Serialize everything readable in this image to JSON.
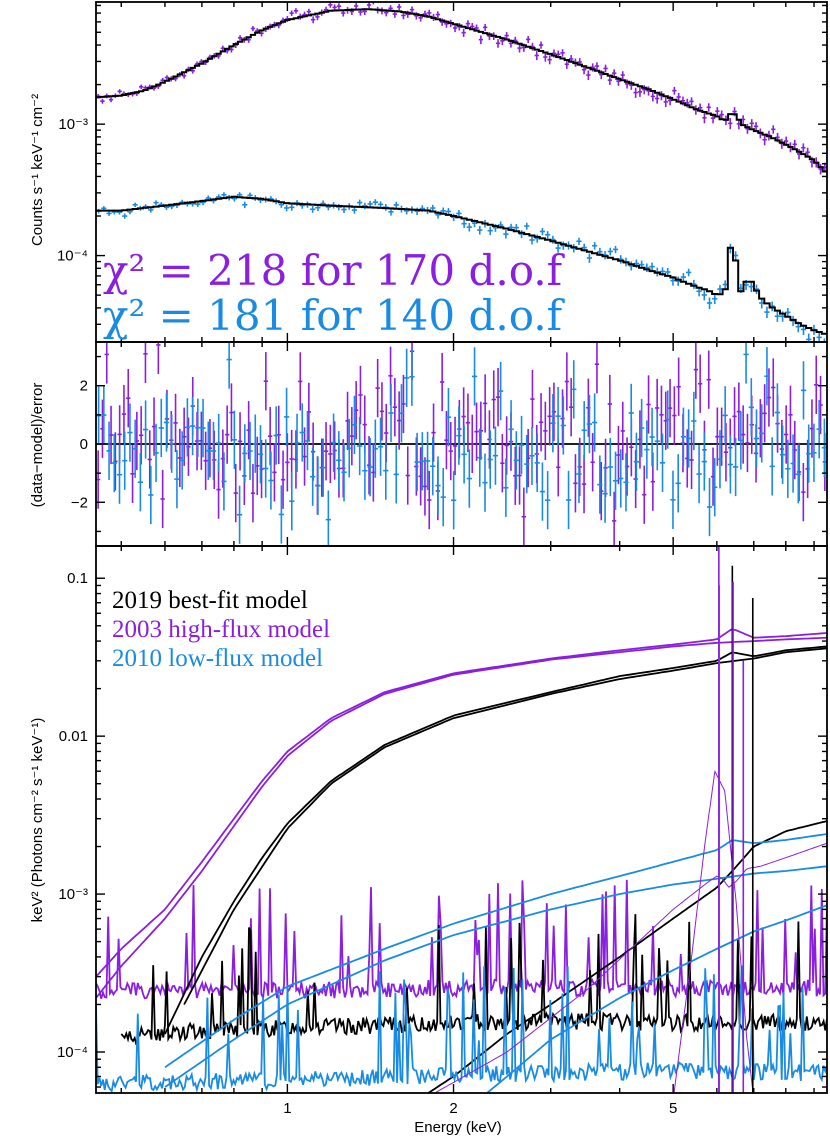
{
  "colors": {
    "obs2003": "#8a1fe0",
    "obs2010": "#1a8be4",
    "model2019": "#000000"
  },
  "chart_data": [
    {
      "panel": "counts-spectrum",
      "type": "line",
      "xscale": "log",
      "yscale": "log",
      "xlim": [
        0.45,
        9.5
      ],
      "ylim": [
        2.2e-05,
        0.0085
      ],
      "ylabel": "Counts s⁻¹ keV⁻¹ cm⁻²",
      "yticks": [
        {
          "value": 0.001,
          "label": "10⁻³"
        },
        {
          "value": 0.0001,
          "label": "10⁻⁴"
        }
      ],
      "annotations": [
        {
          "text": "χ² = 218 for 170 d.o.f",
          "series": "obs2003"
        },
        {
          "text": "χ² = 181 for 140 d.o.f",
          "series": "obs2010"
        }
      ],
      "series": [
        {
          "key": "obs2003",
          "x": [
            0.45,
            0.5,
            0.55,
            0.6,
            0.7,
            0.8,
            0.9,
            1.0,
            1.2,
            1.4,
            1.6,
            1.8,
            2.0,
            2.5,
            3.0,
            3.5,
            4.0,
            4.5,
            5.0,
            5.5,
            6.0,
            6.2,
            6.4,
            6.7,
            7.0,
            7.5,
            8.0,
            8.5,
            9.0,
            9.5
          ],
          "y": [
            0.0016,
            0.00165,
            0.0018,
            0.0021,
            0.0029,
            0.004,
            0.0052,
            0.0062,
            0.0073,
            0.0075,
            0.0072,
            0.0066,
            0.0058,
            0.0044,
            0.0034,
            0.0027,
            0.0022,
            0.00185,
            0.00155,
            0.0013,
            0.00115,
            0.00105,
            0.00125,
            0.00098,
            0.0009,
            0.0008,
            0.0007,
            0.00061,
            0.00053,
            0.00042
          ]
        },
        {
          "key": "obs2010",
          "x": [
            0.45,
            0.5,
            0.6,
            0.7,
            0.8,
            0.9,
            1.0,
            1.2,
            1.5,
            1.8,
            2.0,
            2.5,
            3.0,
            3.5,
            4.0,
            4.5,
            5.0,
            5.5,
            5.8,
            6.0,
            6.2,
            6.4,
            6.6,
            6.7,
            6.9,
            7.2,
            7.5,
            8.0,
            8.5,
            9.0,
            9.5
          ],
          "y": [
            0.00022,
            0.00022,
            0.00024,
            0.00026,
            0.00028,
            0.00027,
            0.00025,
            0.00024,
            0.00023,
            0.00022,
            0.0002,
            0.00016,
            0.00013,
            0.000108,
            9.2e-05,
            7.8e-05,
            6.8e-05,
            5.8e-05,
            5.4e-05,
            5e-05,
            5.2e-05,
            0.00015,
            5e-05,
            6.2e-05,
            6.5e-05,
            4.8e-05,
            4.1e-05,
            3.5e-05,
            3e-05,
            2.7e-05,
            2.5e-05
          ]
        }
      ]
    },
    {
      "panel": "residuals",
      "type": "scatter",
      "xscale": "log",
      "xlim": [
        0.45,
        9.5
      ],
      "ylim": [
        -3.5,
        3.5
      ],
      "ylabel": "(data−model)/error",
      "yticks": [
        {
          "value": 2,
          "label": "2"
        },
        {
          "value": 0,
          "label": "0"
        },
        {
          "value": -2,
          "label": "−2"
        }
      ],
      "series": [
        {
          "key": "obs2003",
          "count": 170
        },
        {
          "key": "obs2010",
          "count": 140
        }
      ]
    },
    {
      "panel": "model-spectrum",
      "type": "line",
      "xscale": "log",
      "yscale": "log",
      "xlim": [
        0.45,
        9.5
      ],
      "ylim": [
        5.5e-05,
        0.16
      ],
      "xlabel": "Energy (keV)",
      "ylabel": "keV² (Photons cm⁻² s⁻¹ keV⁻¹)",
      "xticks": [
        {
          "value": 1,
          "label": "1"
        },
        {
          "value": 2,
          "label": "2"
        },
        {
          "value": 5,
          "label": "5"
        }
      ],
      "yticks": [
        {
          "value": 0.1,
          "label": "0.1"
        },
        {
          "value": 0.01,
          "label": "0.01"
        },
        {
          "value": 0.001,
          "label": "10⁻³"
        },
        {
          "value": 0.0001,
          "label": "10⁻⁴"
        }
      ],
      "legend": [
        {
          "key": "model2019",
          "label": "2019 best-fit model"
        },
        {
          "key": "obs2003",
          "label": "2003 high-flux model"
        },
        {
          "key": "obs2010",
          "label": "2010 low-flux model"
        }
      ],
      "series": [
        {
          "key": "obs2003",
          "x": [
            0.45,
            0.5,
            0.6,
            0.7,
            0.8,
            0.9,
            1.0,
            1.2,
            1.5,
            2.0,
            3.0,
            4.0,
            5.0,
            6.0,
            6.4,
            7.0,
            8.0,
            9.5
          ],
          "y": [
            0.0003,
            0.00045,
            0.0008,
            0.0016,
            0.003,
            0.0052,
            0.008,
            0.013,
            0.019,
            0.025,
            0.031,
            0.035,
            0.038,
            0.041,
            0.048,
            0.042,
            0.043,
            0.045
          ]
        },
        {
          "key": "obs2003",
          "x": [
            0.45,
            0.5,
            0.6,
            0.7,
            0.8,
            0.9,
            1.0,
            1.2,
            1.5,
            2.0,
            3.0,
            4.0,
            5.0,
            6.0,
            7.0,
            8.0,
            9.5
          ],
          "y": [
            0.00022,
            0.00035,
            0.0007,
            0.0014,
            0.0027,
            0.0048,
            0.0075,
            0.0125,
            0.0185,
            0.0245,
            0.0305,
            0.034,
            0.037,
            0.039,
            0.04,
            0.041,
            0.042
          ]
        },
        {
          "key": "obs2003",
          "x": [
            0.45,
            1.0,
            2.0,
            3.0,
            5.0,
            9.5
          ],
          "y": [
            0.00024,
            0.00024,
            0.00025,
            0.00025,
            0.00025,
            0.00025
          ]
        },
        {
          "key": "model2019",
          "x": [
            0.6,
            0.7,
            0.8,
            0.9,
            1.0,
            1.2,
            1.5,
            2.0,
            3.0,
            4.0,
            5.0,
            6.0,
            6.4,
            7.0,
            8.0,
            9.5
          ],
          "y": [
            0.00013,
            0.0004,
            0.0009,
            0.0017,
            0.0028,
            0.0052,
            0.0088,
            0.0135,
            0.019,
            0.024,
            0.027,
            0.03,
            0.034,
            0.032,
            0.035,
            0.037
          ]
        },
        {
          "key": "model2019",
          "x": [
            0.65,
            0.8,
            1.0,
            1.2,
            1.5,
            2.0,
            3.0,
            4.0,
            5.0,
            6.0,
            7.0,
            8.0,
            9.5
          ],
          "y": [
            0.0002,
            0.0008,
            0.0026,
            0.005,
            0.0085,
            0.013,
            0.0185,
            0.023,
            0.026,
            0.029,
            0.031,
            0.034,
            0.036
          ]
        },
        {
          "key": "model2019",
          "x": [
            0.5,
            0.6,
            1.0,
            2.0,
            3.0,
            5.0,
            9.5
          ],
          "y": [
            0.00012,
            0.00013,
            0.00014,
            0.00015,
            0.000155,
            0.00015,
            0.00015
          ]
        },
        {
          "key": "model2019",
          "x": [
            1.8,
            2.0,
            2.5,
            3.0,
            4.0,
            5.0,
            6.0,
            6.4,
            7.0,
            8.0,
            9.5
          ],
          "y": [
            5.5e-05,
            7e-05,
            0.00013,
            0.0002,
            0.0004,
            0.0007,
            0.0011,
            0.0014,
            0.002,
            0.0025,
            0.0029
          ]
        },
        {
          "key": "obs2010",
          "x": [
            0.6,
            0.8,
            1.0,
            1.5,
            2.0,
            3.0,
            4.0,
            5.0,
            6.0,
            6.4,
            7.0,
            8.0,
            9.5
          ],
          "y": [
            8e-05,
            0.00016,
            0.00026,
            0.00045,
            0.00065,
            0.001,
            0.0013,
            0.0016,
            0.0019,
            0.0022,
            0.0021,
            0.0022,
            0.0024
          ]
        },
        {
          "key": "obs2010",
          "x": [
            0.6,
            0.8,
            1.0,
            1.5,
            2.0,
            3.0,
            4.0,
            5.0,
            6.0,
            7.0,
            8.0,
            9.5
          ],
          "y": [
            6e-05,
            0.00012,
            0.0002,
            0.00038,
            0.00055,
            0.0008,
            0.001,
            0.00115,
            0.00125,
            0.00135,
            0.0014,
            0.0015
          ]
        },
        {
          "key": "obs2010",
          "x": [
            0.45,
            1.0,
            2.0,
            3.0,
            5.0,
            9.5
          ],
          "y": [
            6.2e-05,
            6.5e-05,
            7e-05,
            7.2e-05,
            7.5e-05,
            7.2e-05
          ]
        },
        {
          "key": "obs2010",
          "x": [
            2.3,
            2.5,
            3.0,
            4.0,
            5.0,
            6.0,
            6.4,
            7.0,
            8.0,
            9.5
          ],
          "y": [
            5.5e-05,
            7e-05,
            0.00012,
            0.00022,
            0.00033,
            0.00045,
            0.0005,
            0.00058,
            0.00068,
            0.00085
          ]
        },
        {
          "key": "obs2003",
          "x": [
            1.85,
            2.5,
            3.5,
            5.0,
            5.8,
            6.0,
            6.15,
            6.3,
            6.5,
            6.8,
            7.2,
            8.0,
            9.5
          ],
          "y": [
            5.5e-05,
            0.0001,
            0.00025,
            0.0008,
            0.0012,
            0.0013,
            0.00125,
            0.0011,
            0.0012,
            0.00145,
            0.0015,
            0.0017,
            0.0021
          ]
        },
        {
          "key": "obs2003",
          "x": [
            5.0,
            5.4,
            5.7,
            5.95,
            6.2,
            6.5,
            6.8,
            7.0
          ],
          "y": [
            5e-05,
            0.0004,
            0.002,
            0.006,
            0.0045,
            0.0009,
            0.00012,
            5e-05
          ]
        }
      ]
    }
  ]
}
